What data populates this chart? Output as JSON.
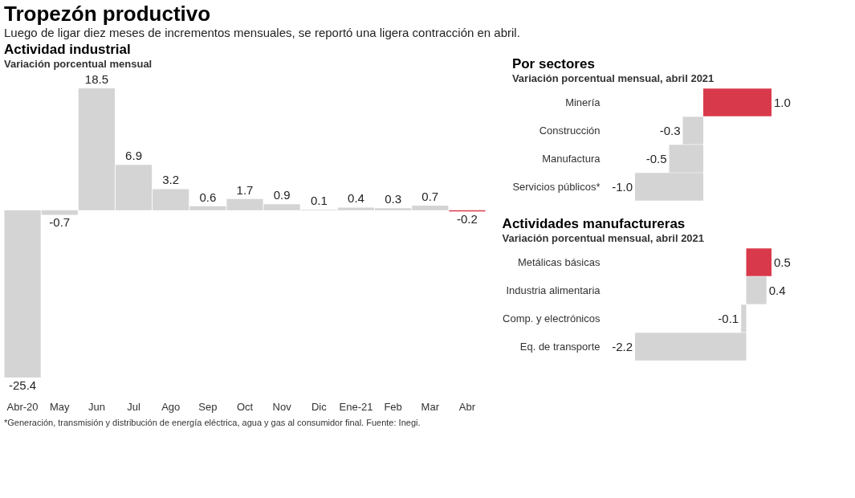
{
  "chart_data": [
    {
      "type": "bar",
      "title": "Actividad industrial",
      "subtitle": "Variación porcentual mensual",
      "categories": [
        "Abr-20",
        "May",
        "Jun",
        "Jul",
        "Ago",
        "Sep",
        "Oct",
        "Nov",
        "Dic",
        "Ene-21",
        "Feb",
        "Mar",
        "Abr"
      ],
      "values": [
        -25.4,
        -0.7,
        18.5,
        6.9,
        3.2,
        0.6,
        1.7,
        0.9,
        0.1,
        0.4,
        0.3,
        0.7,
        -0.2
      ],
      "colors": [
        "#d4d4d4",
        "#d4d4d4",
        "#d4d4d4",
        "#d4d4d4",
        "#d4d4d4",
        "#d4d4d4",
        "#d4d4d4",
        "#d4d4d4",
        "#d4d4d4",
        "#d4d4d4",
        "#d4d4d4",
        "#d4d4d4",
        "#d93a4b"
      ],
      "value_labels": [
        "-25.4",
        "-0.7",
        "18.5",
        "6.9",
        "3.2",
        "0.6",
        "1.7",
        "0.9",
        "0.1",
        "0.4",
        "0.3",
        "0.7",
        "-0.2"
      ],
      "annotations": [
        "Tropezón productivo",
        "Luego de ligar diez meses de incrementos mensuales, se reportó una ligera contracción en abril.",
        "*Generación, transmisión y distribución de energía eléctrica, agua y gas al consumidor final. Fuente: Inegi."
      ]
    },
    {
      "type": "bar",
      "orientation": "horizontal",
      "title": "Por sectores",
      "subtitle": "Variación porcentual mensual, abril 2021",
      "categories": [
        "Minería",
        "Construcción",
        "Manufactura",
        "Servicios públicos*"
      ],
      "values": [
        1.0,
        -0.3,
        -0.5,
        -1.0
      ],
      "colors": [
        "#d93a4b",
        "#d4d4d4",
        "#d4d4d4",
        "#d4d4d4"
      ],
      "value_labels": [
        "1.0",
        "-0.3",
        "-0.5",
        "-1.0"
      ]
    },
    {
      "type": "bar",
      "orientation": "horizontal",
      "title": "Actividades manufactureras",
      "subtitle": "Variación porcentual mensual, abril 2021",
      "categories": [
        "Metálicas básicas",
        "Industria alimentaria",
        "Comp. y electrónicos",
        "Eq. de transporte"
      ],
      "values": [
        0.5,
        0.4,
        -0.1,
        -2.2
      ],
      "colors": [
        "#d93a4b",
        "#d4d4d4",
        "#d4d4d4",
        "#d4d4d4"
      ],
      "value_labels": [
        "0.5",
        "0.4",
        "-0.1",
        "-2.2"
      ]
    }
  ]
}
